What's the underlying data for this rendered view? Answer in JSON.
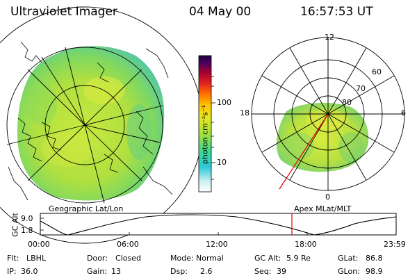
{
  "header": {
    "title": "Ultraviolet Imager",
    "date": "04 May 00",
    "time": "16:57:53 UT"
  },
  "geo_panel": {
    "label": "Geographic Lat/Lon"
  },
  "apex_panel": {
    "label": "Apex MLat/MLT",
    "mlt_labels": {
      "top": "12",
      "left": "18",
      "right": "6",
      "bottom": "0"
    },
    "lat_labels": [
      "60",
      "70",
      "80"
    ]
  },
  "colorbar": {
    "unit_label": "photon cm⁻²s⁻¹",
    "ticks": [
      "100",
      "10"
    ],
    "scale": "log",
    "colors": [
      "#ffffff",
      "#c8f0f0",
      "#30c8d8",
      "#40d890",
      "#a0e040",
      "#e8e820",
      "#ffc000",
      "#ff7000",
      "#e02020",
      "#a00030",
      "#500060",
      "#200040"
    ]
  },
  "altitude_strip": {
    "ylabel": "GC Alt",
    "yticks": [
      "9.0",
      "1.8"
    ],
    "xticks": [
      "00:00",
      "06:00",
      "12:00",
      "18:00",
      "23:59"
    ],
    "marker_color": "#e00000"
  },
  "status": {
    "row1": [
      {
        "key": "Flt:",
        "val": "LBHL"
      },
      {
        "key": "Door:",
        "val": "Closed"
      },
      {
        "key": "Mode:",
        "val": "Normal"
      },
      {
        "key": "GC Alt:",
        "val": "5.9 Re"
      },
      {
        "key": "GLat:",
        "val": "86.8"
      }
    ],
    "row2": [
      {
        "key": "IP:",
        "val": "36.0"
      },
      {
        "key": "Gain:",
        "val": "13"
      },
      {
        "key": "Dsp:",
        "val": "2.6"
      },
      {
        "key": "Seq:",
        "val": "39"
      },
      {
        "key": "GLon:",
        "val": "98.9"
      }
    ]
  }
}
